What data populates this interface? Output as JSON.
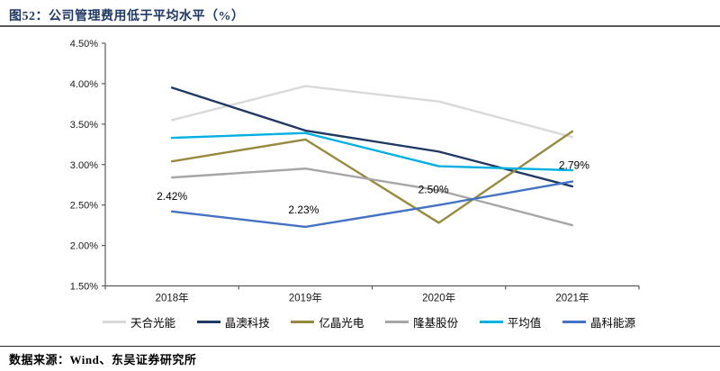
{
  "page": {
    "title": "图52：公司管理费用低于平均水平（%）",
    "source_note": "数据来源：Wind、东吴证券研究所"
  },
  "colors": {
    "title_text": "#1f3864",
    "title_rule": "#595959",
    "footer_rule": "#262626",
    "axis": "#595959",
    "tick_text": "#1a1a1a",
    "data_label_text": "#000000"
  },
  "chart_data": {
    "type": "line",
    "categories": [
      "2018年",
      "2019年",
      "2020年",
      "2021年"
    ],
    "series": [
      {
        "name": "天合光能",
        "color": "#d9d9d9",
        "values": [
          3.55,
          3.97,
          3.78,
          3.34
        ]
      },
      {
        "name": "晶澳科技",
        "color": "#1f3864",
        "values": [
          3.95,
          3.42,
          3.16,
          2.73
        ]
      },
      {
        "name": "亿晶光电",
        "color": "#97893f",
        "values": [
          3.04,
          3.31,
          2.28,
          3.41
        ]
      },
      {
        "name": "隆基股份",
        "color": "#a6a6a6",
        "values": [
          2.84,
          2.95,
          2.68,
          2.25
        ]
      },
      {
        "name": "平均值",
        "color": "#00b0e0",
        "values": [
          3.33,
          3.39,
          2.98,
          2.93
        ]
      },
      {
        "name": "晶科能源",
        "color": "#4472c4",
        "values": [
          2.42,
          2.23,
          2.5,
          2.79
        ],
        "point_labels": [
          "2.42%",
          "2.23%",
          "2.50%",
          "2.79%"
        ]
      }
    ],
    "ylim": [
      1.5,
      4.5
    ],
    "y_ticks": [
      "4.50%",
      "4.00%",
      "3.50%",
      "3.00%",
      "2.50%",
      "2.00%",
      "1.50%"
    ],
    "grid": false,
    "legend_position": "bottom"
  }
}
